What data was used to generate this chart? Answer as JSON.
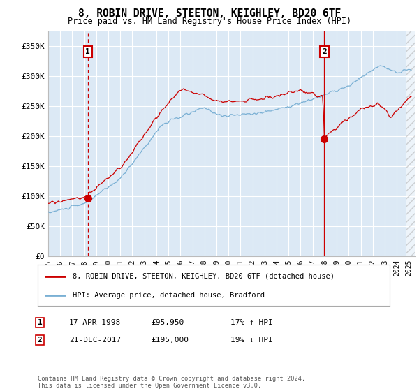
{
  "title": "8, ROBIN DRIVE, STEETON, KEIGHLEY, BD20 6TF",
  "subtitle": "Price paid vs. HM Land Registry's House Price Index (HPI)",
  "legend_line1": "8, ROBIN DRIVE, STEETON, KEIGHLEY, BD20 6TF (detached house)",
  "legend_line2": "HPI: Average price, detached house, Bradford",
  "sale1_date": "17-APR-1998",
  "sale1_price": "£95,950",
  "sale1_hpi": "17% ↑ HPI",
  "sale1_year": 1998.3,
  "sale1_value": 95950,
  "sale2_date": "21-DEC-2017",
  "sale2_price": "£195,000",
  "sale2_hpi": "19% ↓ HPI",
  "sale2_year": 2017.97,
  "sale2_value": 195000,
  "ylabel_ticks": [
    0,
    50000,
    100000,
    150000,
    200000,
    250000,
    300000,
    350000
  ],
  "ylabel_labels": [
    "£0",
    "£50K",
    "£100K",
    "£150K",
    "£200K",
    "£250K",
    "£300K",
    "£350K"
  ],
  "ylim_max": 375000,
  "xlim_start": 1995.0,
  "xlim_end": 2025.5,
  "red_color": "#cc0000",
  "blue_color": "#7ab0d4",
  "bg_color": "#dce9f5",
  "grid_color": "#ffffff",
  "marker_box_color": "#cc0000",
  "footer": "Contains HM Land Registry data © Crown copyright and database right 2024.\nThis data is licensed under the Open Government Licence v3.0."
}
